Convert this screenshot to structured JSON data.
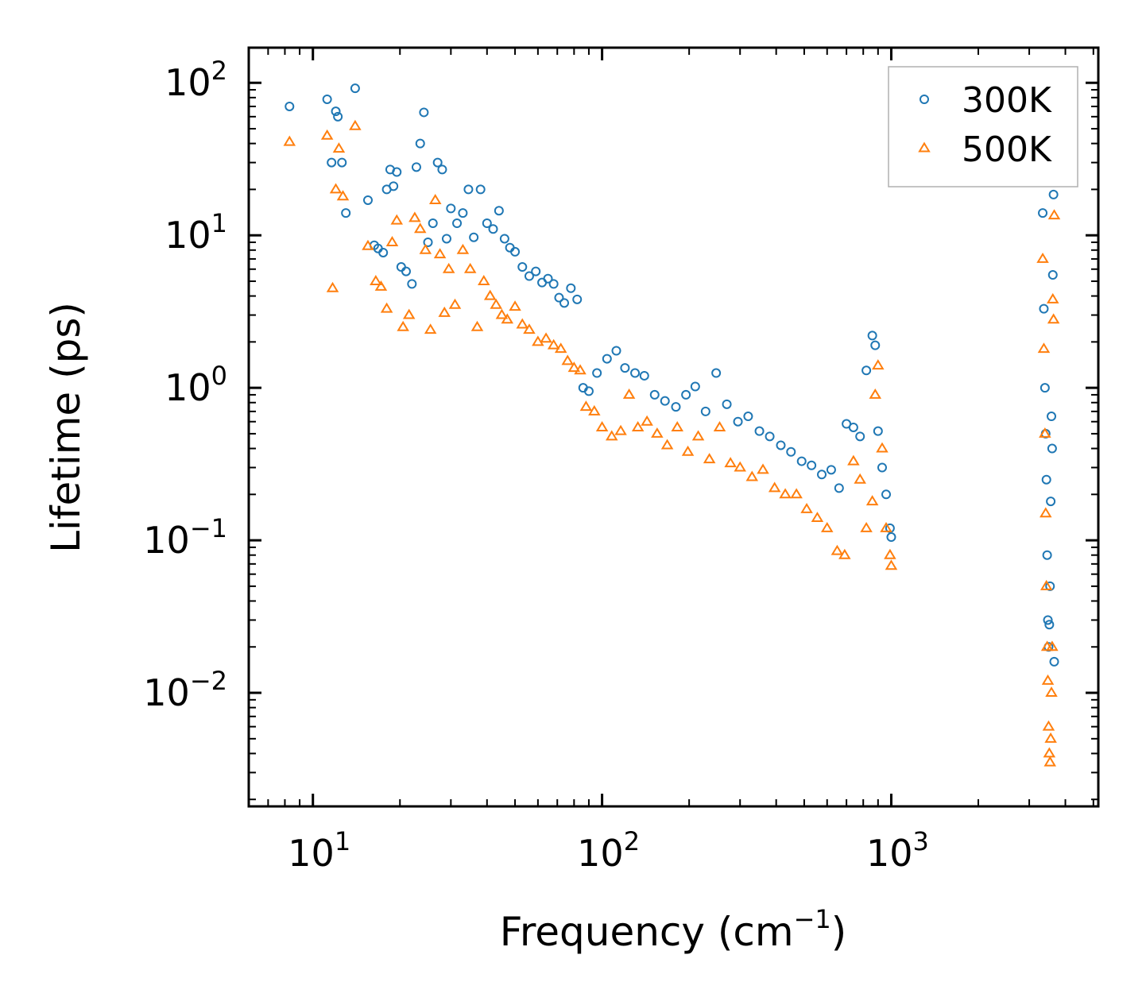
{
  "chart_data": {
    "type": "scatter",
    "xscale": "log",
    "yscale": "log",
    "xlabel": {
      "base": "Frequency (cm",
      "exp": "−1",
      "close": ")"
    },
    "ylabel": "Lifetime (ps)",
    "xlim": [
      6,
      5200
    ],
    "ylim": [
      0.0018,
      170
    ],
    "xticks": [
      {
        "value": 10,
        "base": "10",
        "exp": "1"
      },
      {
        "value": 100,
        "base": "10",
        "exp": "2"
      },
      {
        "value": 1000,
        "base": "10",
        "exp": "3"
      }
    ],
    "yticks": [
      {
        "value": 0.01,
        "base": "10",
        "exp": "−2"
      },
      {
        "value": 0.1,
        "base": "10",
        "exp": "−1"
      },
      {
        "value": 1,
        "base": "10",
        "exp": "0"
      },
      {
        "value": 10,
        "base": "10",
        "exp": "1"
      },
      {
        "value": 100,
        "base": "10",
        "exp": "2"
      }
    ],
    "legend_position": "top-right",
    "series": [
      {
        "name": "300K",
        "marker": "circle",
        "color": "#1f77b4",
        "x": [
          8.3,
          11.2,
          11.6,
          12.0,
          12.2,
          12.6,
          13.0,
          14.0,
          15.5,
          16.3,
          16.8,
          17.5,
          18.0,
          18.5,
          19.0,
          19.5,
          20.2,
          21.0,
          22.0,
          22.8,
          23.5,
          24.2,
          25.0,
          26.0,
          27.0,
          28.0,
          29.0,
          30.0,
          31.5,
          33.0,
          34.5,
          36.0,
          38.0,
          40.0,
          42.0,
          44.0,
          46.0,
          48.0,
          50.0,
          53.0,
          56.0,
          59.0,
          62.0,
          65.0,
          68.0,
          71.0,
          74.0,
          78.0,
          82.0,
          86.0,
          90.0,
          96.0,
          104.0,
          112.0,
          120.0,
          130.0,
          140.0,
          152.0,
          165.0,
          180.0,
          195.0,
          210.0,
          228.0,
          248.0,
          270.0,
          295.0,
          320.0,
          350.0,
          380.0,
          415.0,
          450.0,
          490.0,
          530.0,
          575.0,
          620.0,
          660.0,
          700.0,
          740.0,
          780.0,
          820.0,
          860.0,
          880.0,
          900.0,
          930.0,
          960.0,
          990.0,
          1000.0,
          3340.0,
          3370.0,
          3400.0,
          3420.0,
          3440.0,
          3460.0,
          3480.0,
          3500.0,
          3520.0,
          3540.0,
          3560.0,
          3580.0,
          3600.0,
          3620.0,
          3640.0,
          3660.0
        ],
        "y": [
          70,
          78,
          30,
          65,
          60,
          30,
          14,
          92,
          17,
          8.6,
          8.2,
          7.7,
          20,
          27,
          21,
          26,
          6.2,
          5.8,
          4.8,
          28,
          40,
          64,
          9.0,
          12,
          30,
          27,
          9.5,
          15,
          12,
          14,
          20,
          9.7,
          20,
          12,
          11,
          14.5,
          9.5,
          8.3,
          7.8,
          6.2,
          5.4,
          5.8,
          4.9,
          5.2,
          4.8,
          3.9,
          3.6,
          4.5,
          3.8,
          1.0,
          0.95,
          1.25,
          1.55,
          1.75,
          1.35,
          1.25,
          1.2,
          0.9,
          0.82,
          0.75,
          0.9,
          1.02,
          0.7,
          1.25,
          0.78,
          0.6,
          0.65,
          0.52,
          0.48,
          0.42,
          0.38,
          0.33,
          0.31,
          0.27,
          0.29,
          0.22,
          0.58,
          0.55,
          0.48,
          1.3,
          2.2,
          1.9,
          0.52,
          0.3,
          0.2,
          0.12,
          0.105,
          14,
          3.3,
          1.0,
          0.5,
          0.25,
          0.08,
          0.03,
          0.02,
          0.028,
          0.05,
          0.18,
          0.65,
          0.4,
          5.5,
          18.5,
          0.016
        ]
      },
      {
        "name": "500K",
        "marker": "triangle",
        "color": "#ff7f0e",
        "x": [
          8.3,
          11.2,
          11.7,
          12.0,
          12.3,
          12.7,
          14.0,
          15.5,
          16.5,
          17.2,
          18.0,
          18.8,
          19.5,
          20.5,
          21.5,
          22.5,
          23.5,
          24.5,
          25.5,
          26.5,
          27.5,
          28.5,
          29.5,
          31.0,
          33.0,
          35.0,
          37.0,
          39.0,
          41.0,
          43.0,
          45.0,
          47.0,
          50.0,
          53.0,
          56.0,
          60.0,
          64.0,
          68.0,
          72.0,
          76.0,
          80.0,
          84.0,
          88.0,
          94.0,
          100.0,
          108.0,
          116.0,
          124.0,
          133.0,
          143.0,
          155.0,
          168.0,
          182.0,
          198.0,
          215.0,
          235.0,
          255.0,
          278.0,
          300.0,
          330.0,
          360.0,
          395.0,
          430.0,
          470.0,
          510.0,
          555.0,
          600.0,
          650.0,
          690.0,
          740.0,
          780.0,
          820.0,
          860.0,
          880.0,
          900.0,
          930.0,
          960.0,
          990.0,
          1000.0,
          3340.0,
          3370.0,
          3400.0,
          3420.0,
          3440.0,
          3460.0,
          3480.0,
          3500.0,
          3520.0,
          3540.0,
          3560.0,
          3580.0,
          3600.0,
          3620.0,
          3640.0,
          3660.0
        ],
        "y": [
          41,
          45,
          4.5,
          20,
          37,
          18,
          52,
          8.5,
          5.0,
          4.6,
          3.3,
          9.0,
          12.5,
          2.5,
          3.0,
          13,
          11,
          8.0,
          2.4,
          17,
          7.5,
          3.1,
          6.0,
          3.5,
          8.0,
          6.0,
          2.5,
          5.0,
          4.0,
          3.5,
          3.0,
          2.8,
          3.4,
          2.6,
          2.4,
          2.0,
          2.1,
          1.9,
          1.8,
          1.5,
          1.35,
          1.3,
          0.75,
          0.7,
          0.55,
          0.48,
          0.52,
          0.9,
          0.55,
          0.6,
          0.5,
          0.42,
          0.55,
          0.38,
          0.48,
          0.34,
          0.55,
          0.32,
          0.3,
          0.26,
          0.29,
          0.22,
          0.2,
          0.2,
          0.16,
          0.14,
          0.12,
          0.085,
          0.08,
          0.33,
          0.25,
          0.12,
          0.18,
          0.9,
          1.4,
          0.4,
          0.12,
          0.08,
          0.068,
          7.0,
          1.8,
          0.5,
          0.15,
          0.05,
          0.02,
          0.012,
          0.006,
          0.004,
          0.0035,
          0.005,
          0.01,
          0.02,
          3.8,
          2.8,
          13.5
        ]
      }
    ]
  }
}
